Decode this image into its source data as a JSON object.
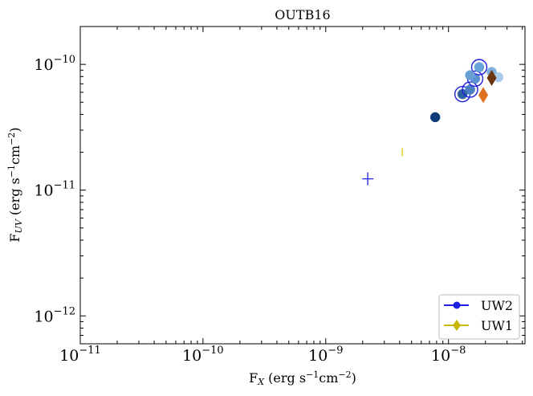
{
  "chart_data": {
    "type": "scatter",
    "title": "OUTB16",
    "xlabel": "F_X (erg s^-1 cm^-2)",
    "ylabel": "F_UV (erg s^-1 cm^-2)",
    "xscale": "log",
    "yscale": "log",
    "xlim": [
      1e-11,
      4.2e-08
    ],
    "ylim": [
      6e-13,
      2e-10
    ],
    "xticks": [
      1e-11,
      1e-10,
      1e-09,
      1e-08
    ],
    "xtick_labels": [
      "10^-11",
      "10^-10",
      "10^-9",
      "10^-8"
    ],
    "yticks": [
      1e-12,
      1e-11,
      1e-10
    ],
    "ytick_labels": [
      "10^-12",
      "10^-11",
      "10^-10"
    ],
    "grid": false,
    "legend_position": "bottom-right",
    "series": [
      {
        "name": "UW2",
        "color": "#1f1fe0",
        "marker": "circle",
        "points": [
          {
            "x": 1.3e-08,
            "y": 5.8e-11,
            "color": "#2e5f9e",
            "ring": true
          },
          {
            "x": 1.5e-08,
            "y": 6.3e-11,
            "color": "#4a7fc1",
            "ring": true
          },
          {
            "x": 1.65e-08,
            "y": 7.7e-11,
            "color": "#5b92d0",
            "ring": true
          },
          {
            "x": 1.78e-08,
            "y": 9.5e-11,
            "color": "#6aa3dc",
            "ring": true
          },
          {
            "x": 1.5e-08,
            "y": 8.2e-11,
            "color": "#6a9fd6",
            "ring": false
          },
          {
            "x": 2.25e-08,
            "y": 8.7e-11,
            "color": "#7fb0e0",
            "ring": false
          },
          {
            "x": 2.55e-08,
            "y": 7.9e-11,
            "color": "#a8cbeb",
            "ring": false
          },
          {
            "x": 7.8e-09,
            "y": 3.8e-11,
            "color": "#0d3b78",
            "ring": false
          }
        ]
      },
      {
        "name": "UW1",
        "color": "#c8b800",
        "marker": "diamond",
        "points": [
          {
            "x": 1.92e-08,
            "y": 5.7e-11,
            "color": "#e07020"
          },
          {
            "x": 2.25e-08,
            "y": 7.8e-11,
            "color": "#6b3510"
          }
        ]
      },
      {
        "name": "",
        "color": "#1f1fe0",
        "marker": "plus",
        "points": [
          {
            "x": 2.2e-09,
            "y": 1.23e-11,
            "color": "#1f1fe0"
          }
        ]
      },
      {
        "name": "",
        "color": "#d8c800",
        "marker": "vline",
        "points": [
          {
            "x": 4.2e-09,
            "y": 2e-11,
            "color": "#d8c800"
          }
        ]
      }
    ]
  }
}
